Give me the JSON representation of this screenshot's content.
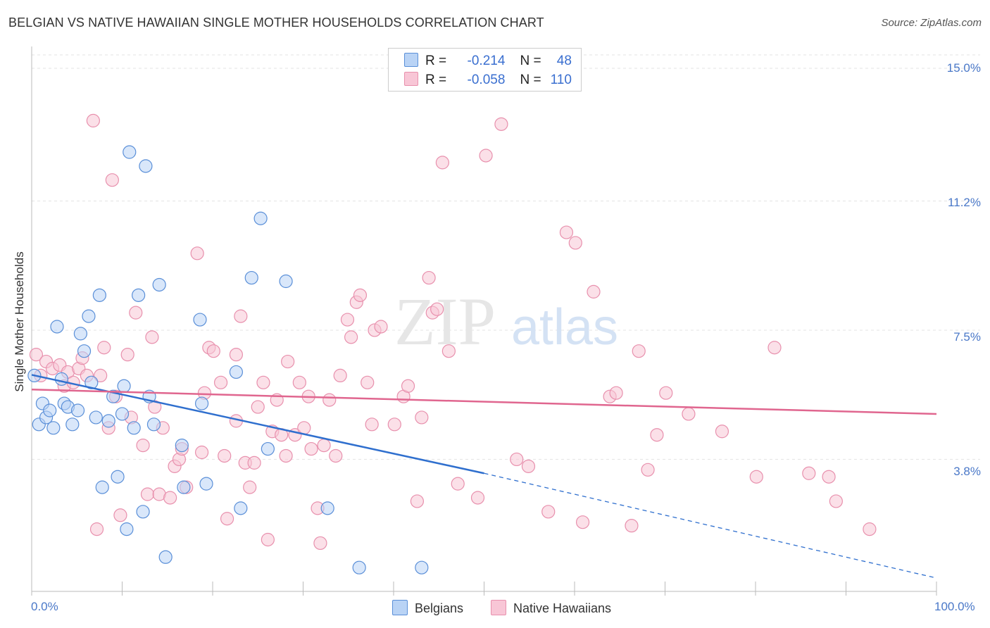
{
  "title": "BELGIAN VS NATIVE HAWAIIAN SINGLE MOTHER HOUSEHOLDS CORRELATION CHART",
  "source": "Source: ZipAtlas.com",
  "watermark": {
    "zip": "ZIP",
    "atlas": "atlas"
  },
  "legend": {
    "r_label": "R =",
    "n_label": "N =",
    "rows": [
      {
        "r": "-0.214",
        "n": "48",
        "fill": "#b9d3f5",
        "stroke": "#5a8fd8"
      },
      {
        "r": "-0.058",
        "n": "110",
        "fill": "#f8c6d6",
        "stroke": "#e890ad"
      }
    ]
  },
  "bottom_legend": [
    {
      "label": "Belgians",
      "fill": "#b9d3f5",
      "stroke": "#5a8fd8"
    },
    {
      "label": "Native Hawaiians",
      "fill": "#f8c6d6",
      "stroke": "#e890ad"
    }
  ],
  "chart_data": {
    "type": "scatter",
    "title": "BELGIAN VS NATIVE HAWAIIAN SINGLE MOTHER HOUSEHOLDS CORRELATION CHART",
    "xlabel": "",
    "ylabel": "Single Mother Households",
    "x_tick_labels": [
      "0.0%",
      "100.0%"
    ],
    "y_tick_labels": [
      "15.0%",
      "11.2%",
      "7.5%",
      "3.8%"
    ],
    "y_tick_values": [
      15.0,
      11.2,
      7.5,
      3.8
    ],
    "xlim": [
      0,
      100
    ],
    "ylim": [
      0,
      15.4
    ],
    "grid": true,
    "legend_position": "top-center",
    "series": [
      {
        "name": "Belgians",
        "color": "#5a8fd8",
        "fill": "#b9d3f5",
        "trend": {
          "x0": 0,
          "y0": 6.22,
          "x1": 50,
          "y1": 3.4,
          "dashed_to_x": 100,
          "dashed_to_y": 0.4,
          "color": "#2f6fce"
        },
        "points": [
          [
            0.3,
            6.2
          ],
          [
            0.8,
            4.8
          ],
          [
            1.2,
            5.4
          ],
          [
            1.6,
            5.0
          ],
          [
            2.0,
            5.2
          ],
          [
            2.4,
            4.7
          ],
          [
            2.8,
            7.6
          ],
          [
            3.3,
            6.1
          ],
          [
            3.6,
            5.4
          ],
          [
            4.0,
            5.3
          ],
          [
            4.5,
            4.8
          ],
          [
            5.1,
            5.2
          ],
          [
            5.4,
            7.4
          ],
          [
            5.8,
            6.9
          ],
          [
            6.3,
            7.9
          ],
          [
            6.6,
            6.0
          ],
          [
            7.1,
            5.0
          ],
          [
            7.5,
            8.5
          ],
          [
            7.8,
            3.0
          ],
          [
            8.5,
            4.9
          ],
          [
            9.0,
            5.6
          ],
          [
            9.5,
            3.3
          ],
          [
            10.0,
            5.1
          ],
          [
            10.2,
            5.9
          ],
          [
            10.5,
            1.8
          ],
          [
            10.8,
            12.6
          ],
          [
            11.3,
            4.7
          ],
          [
            11.8,
            8.5
          ],
          [
            12.3,
            2.3
          ],
          [
            12.6,
            12.2
          ],
          [
            13.0,
            5.6
          ],
          [
            13.5,
            4.8
          ],
          [
            14.1,
            8.8
          ],
          [
            14.8,
            1.0
          ],
          [
            16.6,
            4.2
          ],
          [
            16.8,
            3.0
          ],
          [
            18.6,
            7.8
          ],
          [
            18.8,
            5.4
          ],
          [
            19.3,
            3.1
          ],
          [
            22.6,
            6.3
          ],
          [
            23.1,
            2.4
          ],
          [
            24.3,
            9.0
          ],
          [
            25.3,
            10.7
          ],
          [
            26.1,
            4.1
          ],
          [
            28.1,
            8.9
          ],
          [
            32.7,
            2.4
          ],
          [
            36.2,
            0.7
          ],
          [
            43.1,
            0.7
          ]
        ]
      },
      {
        "name": "Native Hawaiians",
        "color": "#e890ad",
        "fill": "#f8c6d6",
        "trend": {
          "x0": 0,
          "y0": 5.8,
          "x1": 100,
          "y1": 5.1,
          "color": "#e0668f"
        },
        "points": [
          [
            0.5,
            6.8
          ],
          [
            1.0,
            6.2
          ],
          [
            1.6,
            6.6
          ],
          [
            2.3,
            6.4
          ],
          [
            3.1,
            6.5
          ],
          [
            3.6,
            5.9
          ],
          [
            4.0,
            6.3
          ],
          [
            4.6,
            6.0
          ],
          [
            5.2,
            6.4
          ],
          [
            5.6,
            6.7
          ],
          [
            6.1,
            6.2
          ],
          [
            6.8,
            13.5
          ],
          [
            7.2,
            1.8
          ],
          [
            7.6,
            6.2
          ],
          [
            8.0,
            7.0
          ],
          [
            8.5,
            4.7
          ],
          [
            8.9,
            11.8
          ],
          [
            9.3,
            5.6
          ],
          [
            9.8,
            2.2
          ],
          [
            10.6,
            6.8
          ],
          [
            11.0,
            5.0
          ],
          [
            11.5,
            8.0
          ],
          [
            12.3,
            4.2
          ],
          [
            12.8,
            2.8
          ],
          [
            13.3,
            7.3
          ],
          [
            13.6,
            5.3
          ],
          [
            14.1,
            2.8
          ],
          [
            14.5,
            4.7
          ],
          [
            15.3,
            2.7
          ],
          [
            15.8,
            3.6
          ],
          [
            16.3,
            3.8
          ],
          [
            16.6,
            4.1
          ],
          [
            17.1,
            3.0
          ],
          [
            18.3,
            9.7
          ],
          [
            18.8,
            4.0
          ],
          [
            19.1,
            5.7
          ],
          [
            19.6,
            7.0
          ],
          [
            20.1,
            6.9
          ],
          [
            20.9,
            6.0
          ],
          [
            21.3,
            3.9
          ],
          [
            21.6,
            2.1
          ],
          [
            22.6,
            4.9
          ],
          [
            23.1,
            7.9
          ],
          [
            23.6,
            3.7
          ],
          [
            24.1,
            3.0
          ],
          [
            24.6,
            3.7
          ],
          [
            25.0,
            5.3
          ],
          [
            25.6,
            6.0
          ],
          [
            26.1,
            1.5
          ],
          [
            26.6,
            4.6
          ],
          [
            27.1,
            5.5
          ],
          [
            27.6,
            4.5
          ],
          [
            28.1,
            3.9
          ],
          [
            28.3,
            6.6
          ],
          [
            29.1,
            4.5
          ],
          [
            29.6,
            6.0
          ],
          [
            30.1,
            4.7
          ],
          [
            30.6,
            5.6
          ],
          [
            30.9,
            4.1
          ],
          [
            31.6,
            2.4
          ],
          [
            31.9,
            1.4
          ],
          [
            32.3,
            4.2
          ],
          [
            32.9,
            5.5
          ],
          [
            33.6,
            3.9
          ],
          [
            34.1,
            6.2
          ],
          [
            34.9,
            7.8
          ],
          [
            35.3,
            7.3
          ],
          [
            35.9,
            8.3
          ],
          [
            36.3,
            8.5
          ],
          [
            37.1,
            6.0
          ],
          [
            37.6,
            4.8
          ],
          [
            37.9,
            7.5
          ],
          [
            38.6,
            7.6
          ],
          [
            40.1,
            4.8
          ],
          [
            41.1,
            5.6
          ],
          [
            41.6,
            5.9
          ],
          [
            42.6,
            2.6
          ],
          [
            43.1,
            5.0
          ],
          [
            43.9,
            9.0
          ],
          [
            44.3,
            8.0
          ],
          [
            44.8,
            8.1
          ],
          [
            45.4,
            12.3
          ],
          [
            46.1,
            6.9
          ],
          [
            47.1,
            3.1
          ],
          [
            49.3,
            2.7
          ],
          [
            50.2,
            12.5
          ],
          [
            51.9,
            13.4
          ],
          [
            53.6,
            3.8
          ],
          [
            54.9,
            3.6
          ],
          [
            57.1,
            2.3
          ],
          [
            59.1,
            10.3
          ],
          [
            60.1,
            10.0
          ],
          [
            60.9,
            2.0
          ],
          [
            62.1,
            8.6
          ],
          [
            63.9,
            5.6
          ],
          [
            64.6,
            5.7
          ],
          [
            66.3,
            1.9
          ],
          [
            67.1,
            6.9
          ],
          [
            68.1,
            3.5
          ],
          [
            69.1,
            4.5
          ],
          [
            70.1,
            5.7
          ],
          [
            72.6,
            5.1
          ],
          [
            76.3,
            4.6
          ],
          [
            80.1,
            3.3
          ],
          [
            82.1,
            7.0
          ],
          [
            85.9,
            3.4
          ],
          [
            88.1,
            3.3
          ],
          [
            88.9,
            2.6
          ],
          [
            92.6,
            1.8
          ],
          [
            22.6,
            6.8
          ]
        ]
      }
    ]
  }
}
